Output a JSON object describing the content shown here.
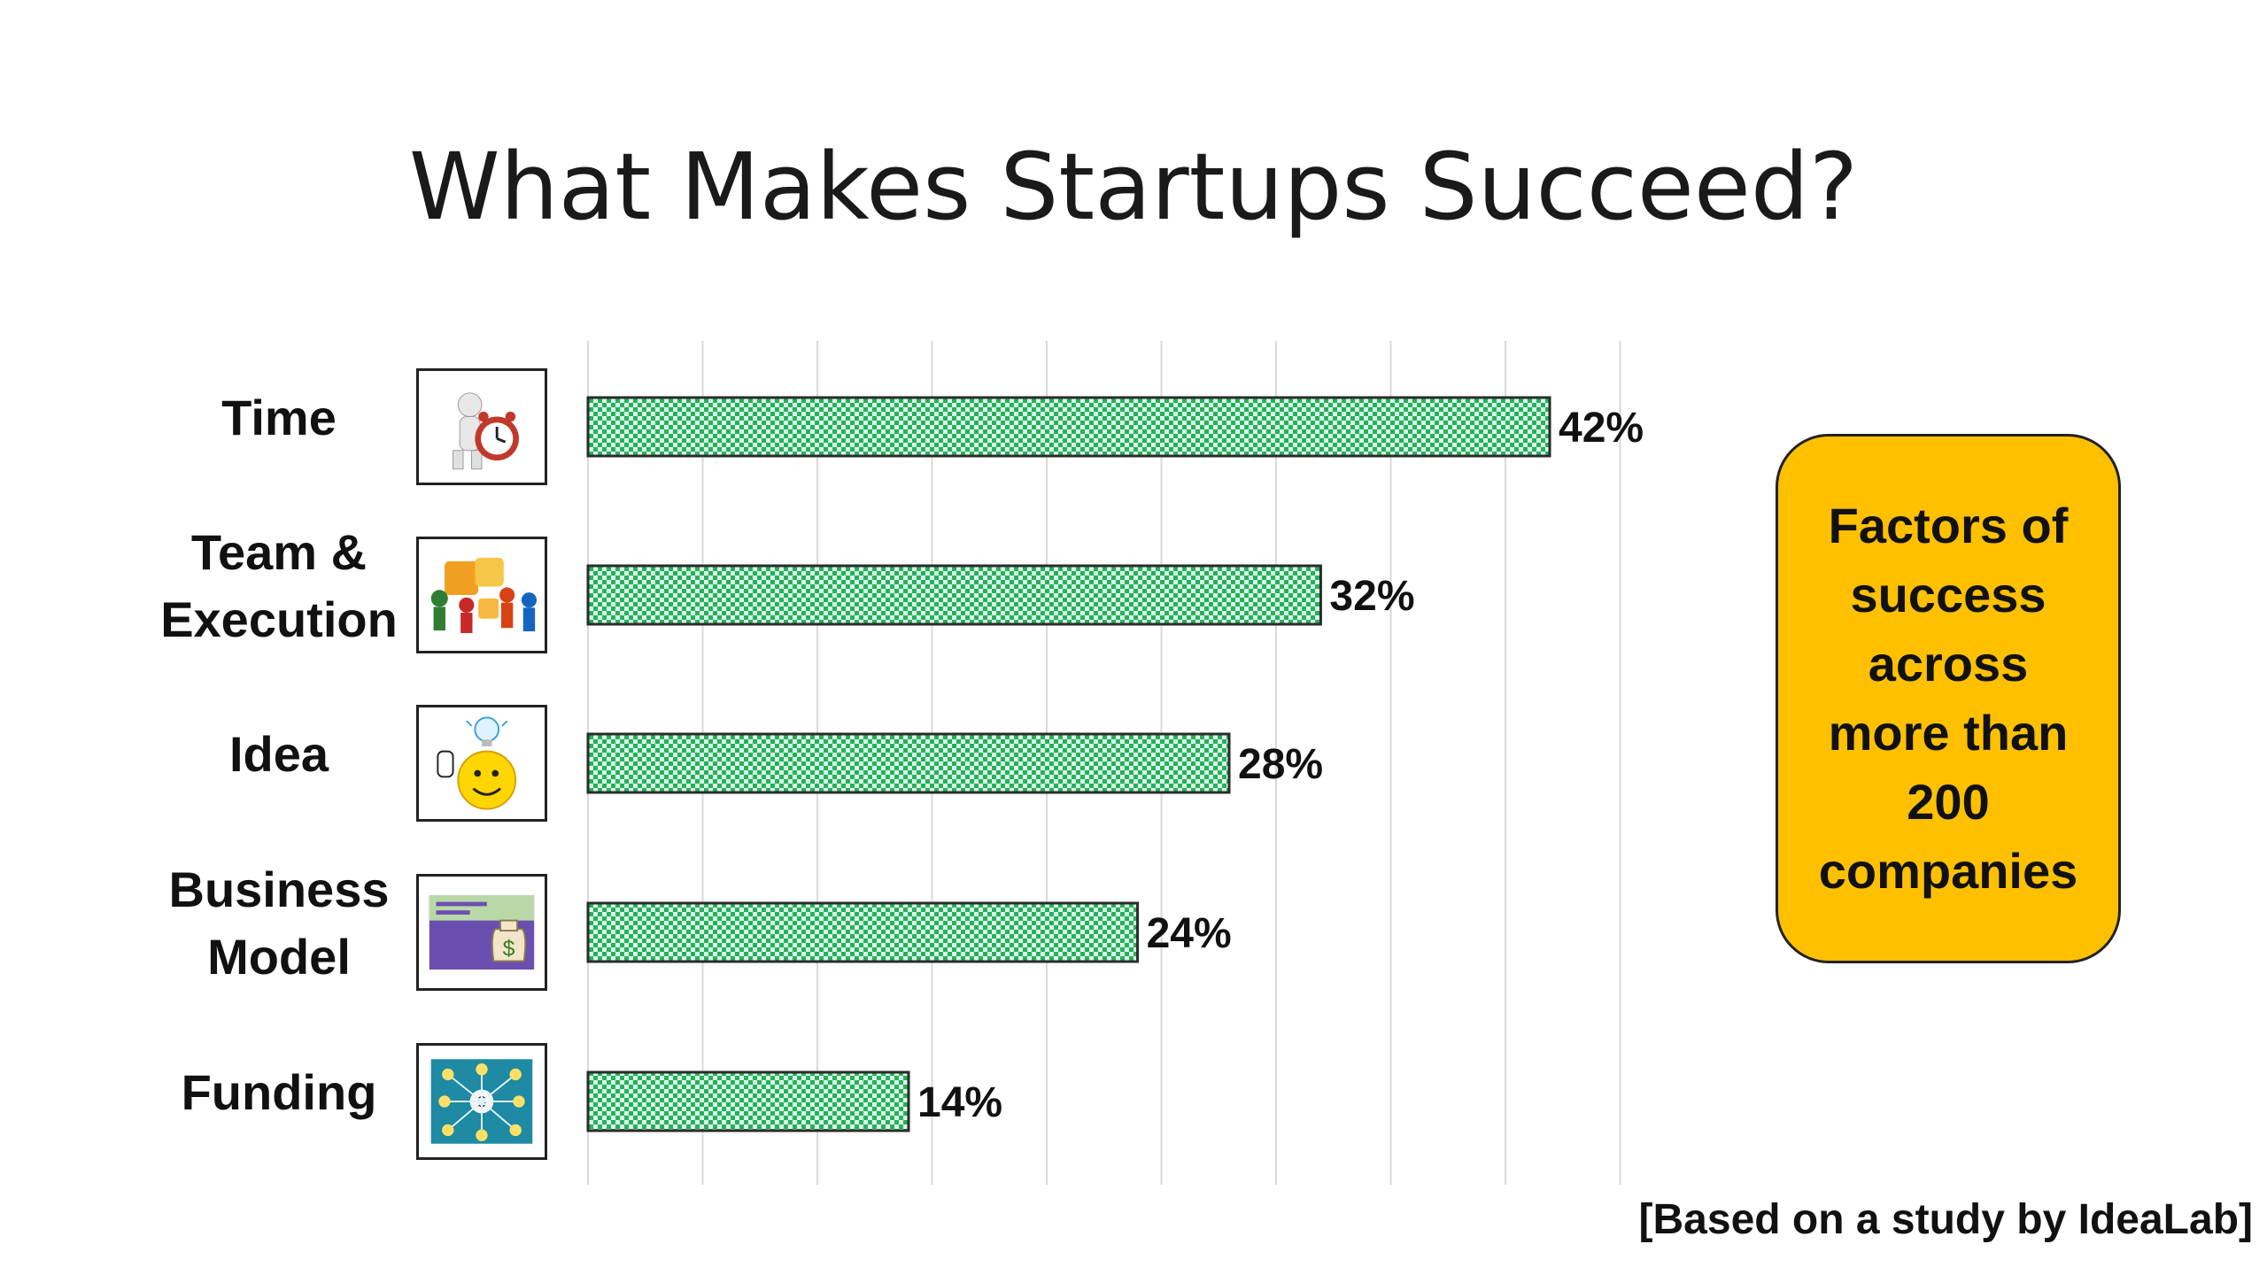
{
  "slide": {
    "title": "What Makes Startups Succeed?",
    "callout": "Factors of success across more than 200 companies",
    "source": "[Based on a study by IdeaLab]"
  },
  "colors": {
    "bar_fill": "#21b35a",
    "bar_pattern_light": "#dff5e7",
    "gridline": "#d9d9d9",
    "callout_fill": "#ffc000"
  },
  "chart_data": {
    "type": "bar",
    "orientation": "horizontal",
    "categories": [
      "Time",
      "Team &\nExecution",
      "Idea",
      "Business\nModel",
      "Funding"
    ],
    "values": [
      42,
      32,
      28,
      24,
      14
    ],
    "value_labels": [
      "42%",
      "32%",
      "28%",
      "24%",
      "14%"
    ],
    "unit": "%",
    "xlim": [
      0,
      45
    ],
    "grid": true,
    "legend": "none",
    "icons": [
      "time-clock-icon",
      "teamwork-puzzle-icon",
      "idea-lightbulb-icon",
      "money-bag-icon",
      "funding-network-icon"
    ]
  }
}
